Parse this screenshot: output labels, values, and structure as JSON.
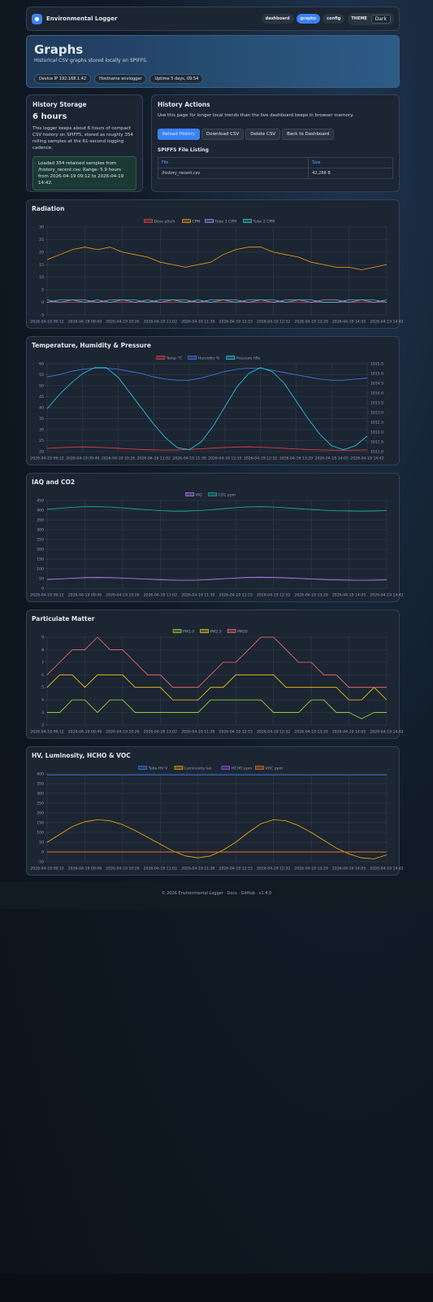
{
  "nav": {
    "brand": "Environmental Logger",
    "links": [
      "dashboard",
      "graphs",
      "config"
    ],
    "theme_label": "THEME",
    "theme_value": "Dark"
  },
  "header": {
    "title": "Graphs",
    "subtitle": "Historical CSV graphs stored locally on SPIFFS.",
    "pills": [
      "Device IP 192.168.1.42",
      "Hostname envlogger",
      "Uptime 5 days, 09:54"
    ]
  },
  "storage": {
    "title": "History Storage",
    "duration": "6 hours",
    "text": "This logger keeps about 6 hours of compact CSV history on SPIFFS, stored as roughly 354 rolling samples at the 61-second logging cadence.",
    "info": "Loaded 354 retained samples from /history_recent.csv. Range: 5.9 hours from 2026-04-19 09:12 to 2026-04-19 14:42."
  },
  "actions": {
    "title": "History Actions",
    "text": "Use this page for longer local trends than the live dashboard keeps in browser memory.",
    "buttons": [
      "Reload History",
      "Download CSV",
      "Delete CSV",
      "Back to Dashboard"
    ],
    "listing_title": "SPIFFS File Listing",
    "table": {
      "header": [
        "File",
        "Size"
      ],
      "rows": [
        [
          "/history_recent.csv",
          "42,288 B"
        ]
      ]
    }
  },
  "footer": "© 2026 Environmental Logger · Docs · GitHub · v1.4.0",
  "chart_data": [
    {
      "type": "line",
      "title": "Radiation",
      "grid": true,
      "categories": [
        "2026-04-19 09:12",
        null,
        null,
        "2026-04-19 09:49",
        null,
        null,
        "2026-04-19 10:26",
        null,
        null,
        "2026-04-19 11:02",
        null,
        null,
        "2026-04-19 11:39",
        null,
        null,
        "2026-04-19 12:15",
        null,
        null,
        "2026-04-19 12:52",
        null,
        null,
        "2026-04-19 13:29",
        null,
        null,
        "2026-04-19 14:05",
        null,
        null,
        "2026-04-19 14:42"
      ],
      "ylim": [
        -5,
        30
      ],
      "yticks": [
        -5,
        0,
        5,
        10,
        15,
        20,
        25,
        30
      ],
      "series": [
        {
          "name": "Dose µSv/h",
          "color": "#ef4444",
          "values": [
            0.1,
            0.11,
            0.1,
            0.12,
            0.1,
            0.11,
            0.1,
            0.1,
            0.11,
            0.1,
            0.1,
            0.09,
            0.1,
            0.1,
            0.11,
            0.12,
            0.11,
            0.1,
            0.1,
            0.11,
            0.1,
            0.1,
            0.09,
            0.1,
            0.1,
            0.1,
            0.11,
            0.1
          ]
        },
        {
          "name": "CPM",
          "color": "#f59e0b",
          "values": [
            17,
            19,
            21,
            22,
            21,
            22,
            20,
            19,
            18,
            16,
            15,
            14,
            15,
            16,
            19,
            21,
            22,
            22,
            20,
            19,
            18,
            16,
            15,
            14,
            14,
            13,
            14,
            15
          ]
        },
        {
          "name": "Tube 1 CPM",
          "color": "#a78bfa",
          "values": [
            1,
            0,
            1,
            1,
            0,
            1,
            1,
            0,
            1,
            0,
            1,
            1,
            0,
            1,
            1,
            1,
            0,
            1,
            0,
            1,
            1,
            0,
            1,
            1,
            0,
            1,
            0,
            1
          ]
        },
        {
          "name": "Tube 2 CPM",
          "color": "#2dd4bf",
          "values": [
            0,
            1,
            1,
            0,
            1,
            0,
            1,
            1,
            0,
            1,
            1,
            0,
            1,
            0,
            1,
            0,
            1,
            1,
            1,
            0,
            1,
            1,
            0,
            0,
            1,
            1,
            1,
            0
          ]
        }
      ]
    },
    {
      "type": "line",
      "title": "Temperature, Humidity & Pressure",
      "grid": true,
      "categories": [
        "2026-04-19 09:12",
        null,
        null,
        "2026-04-19 09:49",
        null,
        null,
        "2026-04-19 10:26",
        null,
        null,
        "2026-04-19 11:02",
        null,
        null,
        "2026-04-19 11:39",
        null,
        null,
        "2026-04-19 12:15",
        null,
        null,
        "2026-04-19 12:52",
        null,
        null,
        "2026-04-19 13:29",
        null,
        null,
        "2026-04-19 14:05",
        null,
        null,
        "2026-04-19 14:42"
      ],
      "ylim": [
        20,
        60
      ],
      "yticks": [
        20,
        25,
        30,
        35,
        40,
        45,
        50,
        55,
        60
      ],
      "y2lim": [
        1011,
        1015.5
      ],
      "y2ticks": [
        {
          "value": 1011,
          "label": "1011.0"
        },
        {
          "value": 1011.5,
          "label": "1011.5"
        },
        {
          "value": 1012,
          "label": "1012.0"
        },
        {
          "value": 1012.5,
          "label": "1012.5"
        },
        {
          "value": 1013,
          "label": "1013.0"
        },
        {
          "value": 1013.5,
          "label": "1013.5"
        },
        {
          "value": 1014,
          "label": "1014.0"
        },
        {
          "value": 1014.5,
          "label": "1014.5"
        },
        {
          "value": 1015,
          "label": "1015.0"
        },
        {
          "value": 1015.5,
          "label": "1015.5"
        }
      ],
      "series": [
        {
          "name": "Temp °C",
          "color": "#ef4444",
          "values": [
            21.5,
            21.8,
            22,
            22.2,
            22,
            21.8,
            21.5,
            21.2,
            21,
            20.8,
            20.7,
            20.8,
            21,
            21.3,
            21.6,
            21.9,
            22.1,
            22.2,
            22,
            21.8,
            21.5,
            21.2,
            21,
            20.8,
            20.7,
            20.6,
            20.7,
            20.8
          ]
        },
        {
          "name": "Humidity %",
          "color": "#3b82f6",
          "values": [
            54,
            55,
            56.5,
            57.5,
            58,
            58,
            57.5,
            56.5,
            55.5,
            54,
            53,
            52.5,
            52.5,
            53.5,
            55,
            56.5,
            57.5,
            58,
            58,
            57,
            56,
            55,
            54,
            53,
            52.5,
            52.5,
            53,
            53.5
          ]
        },
        {
          "name": "Pressure hPa",
          "color": "#22d3ee",
          "axis": "y2",
          "values": [
            1013.2,
            1013.9,
            1014.5,
            1015,
            1015.3,
            1015.3,
            1014.8,
            1014,
            1013.2,
            1012.4,
            1011.7,
            1011.2,
            1011.1,
            1011.5,
            1012.3,
            1013.3,
            1014.3,
            1015,
            1015.3,
            1015.1,
            1014.5,
            1013.6,
            1012.7,
            1011.9,
            1011.3,
            1011.1,
            1011.3,
            1011.8
          ]
        }
      ]
    },
    {
      "type": "line",
      "title": "IAQ and CO2",
      "grid": true,
      "categories": [
        "2026-04-19 09:12",
        null,
        null,
        "2026-04-19 09:49",
        null,
        null,
        "2026-04-19 10:26",
        null,
        null,
        "2026-04-19 11:02",
        null,
        null,
        "2026-04-19 11:39",
        null,
        null,
        "2026-04-19 12:15",
        null,
        null,
        "2026-04-19 12:52",
        null,
        null,
        "2026-04-19 13:29",
        null,
        null,
        "2026-04-19 14:05",
        null,
        null,
        "2026-04-19 14:42"
      ],
      "ylim": [
        0,
        450
      ],
      "yticks": [
        0,
        50,
        100,
        150,
        200,
        250,
        300,
        350,
        400,
        450
      ],
      "series": [
        {
          "name": "IAQ",
          "color": "#c084fc",
          "values": [
            45,
            48,
            52,
            55,
            56,
            55,
            53,
            50,
            47,
            44,
            42,
            41,
            42,
            45,
            49,
            53,
            56,
            57,
            56,
            54,
            51,
            48,
            45,
            43,
            42,
            41,
            42,
            43
          ]
        },
        {
          "name": "CO2 ppm",
          "color": "#14b8a6",
          "values": [
            405,
            410,
            415,
            418,
            418,
            416,
            412,
            407,
            402,
            398,
            395,
            395,
            398,
            402,
            408,
            413,
            417,
            418,
            416,
            412,
            408,
            404,
            400,
            397,
            396,
            395,
            396,
            398
          ]
        }
      ]
    },
    {
      "type": "line",
      "title": "Particulate Matter",
      "grid": true,
      "categories": [
        "2026-04-19 09:12",
        null,
        null,
        "2026-04-19 09:49",
        null,
        null,
        "2026-04-19 10:26",
        null,
        null,
        "2026-04-19 11:02",
        null,
        null,
        "2026-04-19 11:39",
        null,
        null,
        "2026-04-19 12:15",
        null,
        null,
        "2026-04-19 12:52",
        null,
        null,
        "2026-04-19 13:29",
        null,
        null,
        "2026-04-19 14:05",
        null,
        null,
        "2026-04-19 14:42"
      ],
      "ylim": [
        2,
        9
      ],
      "yticks": [
        2,
        3,
        4,
        5,
        6,
        7,
        8,
        9
      ],
      "series": [
        {
          "name": "PM1.0",
          "color": "#a3e635",
          "values": [
            3,
            3,
            4,
            4,
            3,
            4,
            4,
            3,
            3,
            3,
            3,
            3,
            3,
            4,
            4,
            4,
            4,
            4,
            3,
            3,
            3,
            4,
            4,
            3,
            3,
            2.5,
            3,
            3
          ]
        },
        {
          "name": "PM2.5",
          "color": "#facc15",
          "values": [
            5,
            6,
            6,
            5,
            6,
            6,
            6,
            5,
            5,
            5,
            4,
            4,
            4,
            5,
            5,
            6,
            6,
            6,
            6,
            5,
            5,
            5,
            5,
            5,
            4,
            4,
            5,
            4
          ]
        },
        {
          "name": "PM10",
          "color": "#f87171",
          "values": [
            6,
            7,
            8,
            8,
            9,
            8,
            8,
            7,
            6,
            6,
            5,
            5,
            5,
            6,
            7,
            7,
            8,
            9,
            9,
            8,
            7,
            7,
            6,
            6,
            5,
            5,
            5,
            5
          ]
        }
      ]
    },
    {
      "type": "line",
      "title": "HV, Luminosity, HCHO & VOC",
      "grid": true,
      "categories": [
        "2026-04-19 09:12",
        null,
        null,
        "2026-04-19 09:49",
        null,
        null,
        "2026-04-19 10:26",
        null,
        null,
        "2026-04-19 11:02",
        null,
        null,
        "2026-04-19 11:39",
        null,
        null,
        "2026-04-19 12:15",
        null,
        null,
        "2026-04-19 12:52",
        null,
        null,
        "2026-04-19 13:29",
        null,
        null,
        "2026-04-19 14:05",
        null,
        null,
        "2026-04-19 14:42"
      ],
      "ylim": [
        -50,
        400
      ],
      "yticks": [
        -50,
        0,
        50,
        100,
        150,
        200,
        250,
        300,
        350,
        400
      ],
      "series": [
        {
          "name": "Tube HV V",
          "color": "#3b82f6",
          "values": [
            395,
            395,
            395,
            395,
            395,
            395,
            395,
            395,
            395,
            395,
            395,
            395,
            395,
            395,
            395,
            395,
            395,
            395,
            395,
            395,
            395,
            395,
            395,
            395,
            395,
            395,
            395,
            395
          ]
        },
        {
          "name": "Luminosity lux",
          "color": "#eab308",
          "values": [
            50,
            90,
            130,
            155,
            165,
            160,
            140,
            110,
            75,
            40,
            5,
            -20,
            -30,
            -20,
            10,
            50,
            100,
            145,
            165,
            160,
            135,
            100,
            60,
            20,
            -10,
            -30,
            -35,
            -15
          ]
        },
        {
          "name": "HCHO ppm",
          "color": "#a855f7",
          "values": [
            0.02,
            0.02,
            0.02,
            0.02,
            0.02,
            0.02,
            0.02,
            0.02,
            0.02,
            0.02,
            0.02,
            0.02,
            0.02,
            0.02,
            0.02,
            0.02,
            0.02,
            0.02,
            0.02,
            0.02,
            0.02,
            0.02,
            0.02,
            0.02,
            0.02,
            0.02,
            0.02,
            0.02
          ]
        },
        {
          "name": "VOC ppm",
          "color": "#f97316",
          "values": [
            0.3,
            0.3,
            0.3,
            0.3,
            0.3,
            0.3,
            0.3,
            0.3,
            0.3,
            0.3,
            0.3,
            0.3,
            0.3,
            0.3,
            0.3,
            0.3,
            0.3,
            0.3,
            0.3,
            0.3,
            0.3,
            0.3,
            0.3,
            0.3,
            0.3,
            0.3,
            0.3,
            0.3
          ]
        }
      ]
    }
  ]
}
